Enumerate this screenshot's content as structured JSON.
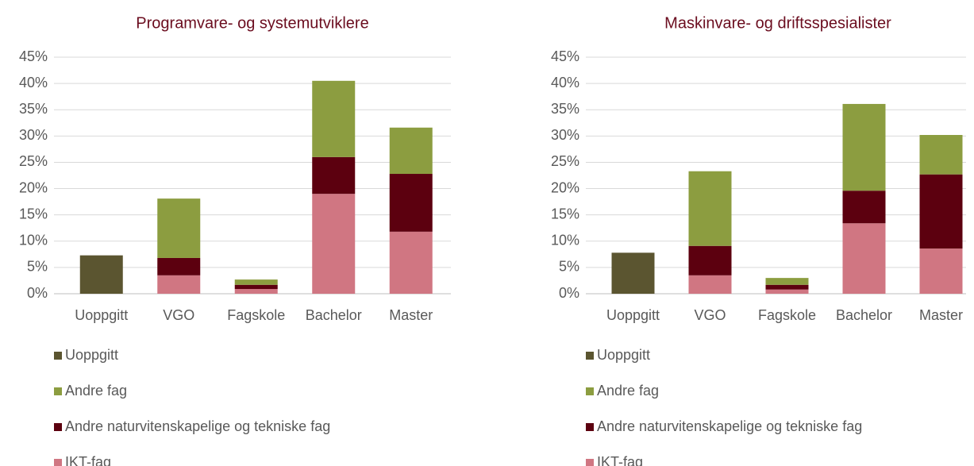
{
  "chart_data": [
    {
      "type": "bar",
      "title": "Programvare- og systemutviklere",
      "categories": [
        "Uoppgitt",
        "VGO",
        "Fagskole",
        "Bachelor",
        "Master"
      ],
      "series": [
        {
          "name": "Uoppgitt",
          "color": "#5b5530",
          "values": [
            7.3,
            null,
            null,
            null,
            null
          ]
        },
        {
          "name": "Andre fag",
          "color": "#8c9d40",
          "values": [
            null,
            11.3,
            1.0,
            14.5,
            8.8
          ]
        },
        {
          "name": "Andre naturvitenskapelige og tekniske fag",
          "color": "#5c000f",
          "values": [
            null,
            3.3,
            0.8,
            7.0,
            11.0
          ]
        },
        {
          "name": "IKT-fag",
          "color": "#d07682",
          "values": [
            null,
            3.5,
            0.9,
            19.0,
            11.8
          ]
        }
      ],
      "ylim": [
        0,
        45
      ],
      "yticks": [
        {
          "value": 0,
          "label": "0%"
        },
        {
          "value": 5,
          "label": "5%"
        },
        {
          "value": 10,
          "label": "10%"
        },
        {
          "value": 15,
          "label": "15%"
        },
        {
          "value": 20,
          "label": "20%"
        },
        {
          "value": 25,
          "label": "25%"
        },
        {
          "value": 30,
          "label": "30%"
        },
        {
          "value": 35,
          "label": "35%"
        },
        {
          "value": 40,
          "label": "40%"
        },
        {
          "value": 45,
          "label": "45%"
        }
      ],
      "grid": true,
      "stacked": true
    },
    {
      "type": "bar",
      "title": "Maskinvare- og driftsspesialister",
      "categories": [
        "Uoppgitt",
        "VGO",
        "Fagskole",
        "Bachelor",
        "Master"
      ],
      "series": [
        {
          "name": "Uoppgitt",
          "color": "#5b5530",
          "values": [
            7.8,
            null,
            null,
            null,
            null
          ]
        },
        {
          "name": "Andre fag",
          "color": "#8c9d40",
          "values": [
            null,
            14.2,
            1.3,
            16.5,
            7.5
          ]
        },
        {
          "name": "Andre naturvitenskapelige og tekniske fag",
          "color": "#5c000f",
          "values": [
            null,
            5.6,
            0.9,
            6.2,
            14.1
          ]
        },
        {
          "name": "IKT-fag",
          "color": "#d07682",
          "values": [
            null,
            3.5,
            0.8,
            13.4,
            8.6
          ]
        }
      ],
      "ylim": [
        0,
        45
      ],
      "yticks": [
        {
          "value": 0,
          "label": "0%"
        },
        {
          "value": 5,
          "label": "5%"
        },
        {
          "value": 10,
          "label": "10%"
        },
        {
          "value": 15,
          "label": "15%"
        },
        {
          "value": 20,
          "label": "20%"
        },
        {
          "value": 25,
          "label": "25%"
        },
        {
          "value": 30,
          "label": "30%"
        },
        {
          "value": 35,
          "label": "35%"
        },
        {
          "value": 40,
          "label": "40%"
        },
        {
          "value": 45,
          "label": "45%"
        }
      ],
      "grid": true,
      "stacked": true
    }
  ]
}
